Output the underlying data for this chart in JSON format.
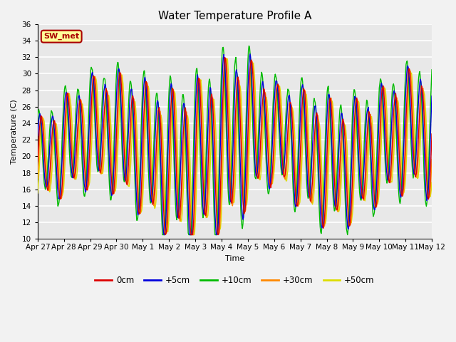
{
  "title": "Water Temperature Profile A",
  "xlabel": "Time",
  "ylabel": "Temperature (C)",
  "ylim": [
    10,
    36
  ],
  "yticks": [
    10,
    12,
    14,
    16,
    18,
    20,
    22,
    24,
    26,
    28,
    30,
    32,
    34,
    36
  ],
  "x_labels": [
    "Apr 27",
    "Apr 28",
    "Apr 29",
    "Apr 30",
    "May 1",
    "May 2",
    "May 3",
    "May 4",
    "May 5",
    "May 6",
    "May 7",
    "May 8",
    "May 9",
    "May 10",
    "May 11",
    "May 12"
  ],
  "legend_labels": [
    "0cm",
    "+5cm",
    "+10cm",
    "+30cm",
    "+50cm"
  ],
  "legend_colors": [
    "#dd0000",
    "#0000dd",
    "#00bb00",
    "#ff8800",
    "#dddd00"
  ],
  "bg_color": "#e8e8e8",
  "grid_color": "#ffffff",
  "annotation_text": "SW_met",
  "annotation_bg": "#ffff99",
  "annotation_border": "#aa0000",
  "title_fontsize": 11,
  "label_fontsize": 8,
  "tick_fontsize": 7.5
}
